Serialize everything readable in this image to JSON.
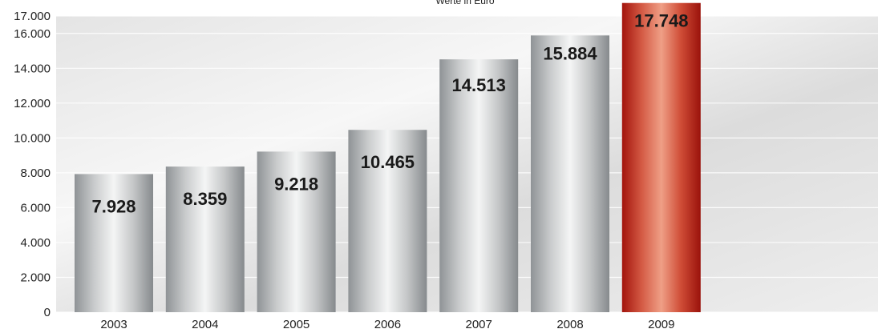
{
  "chart_data": {
    "type": "bar",
    "subtitle": "Werte in Euro",
    "categories": [
      "2003",
      "2004",
      "2005",
      "2006",
      "2007",
      "2008",
      "2009"
    ],
    "values": [
      7928,
      8359,
      9218,
      10465,
      14513,
      15884,
      17748
    ],
    "value_labels": [
      "7.928",
      "8.359",
      "9.218",
      "10.465",
      "14.513",
      "15.884",
      "17.748"
    ],
    "ylim": [
      0,
      17000
    ],
    "yticks": [
      0,
      2000,
      4000,
      6000,
      8000,
      10000,
      12000,
      14000,
      16000,
      17000
    ],
    "ytick_labels": [
      "0",
      "2.000",
      "4.000",
      "6.000",
      "8.000",
      "10.000",
      "12.000",
      "14.000",
      "16.000",
      "17.000"
    ],
    "grid": true,
    "highlight_index": 6,
    "colors": {
      "bar_silver_dark": "#8f9396",
      "bar_silver_light": "#f4f5f5",
      "bar_red_dark": "#a3140c",
      "bar_red_light": "#ef9f86",
      "background_light": "#f5f5f5",
      "background_dark": "#d8d8d8"
    }
  }
}
